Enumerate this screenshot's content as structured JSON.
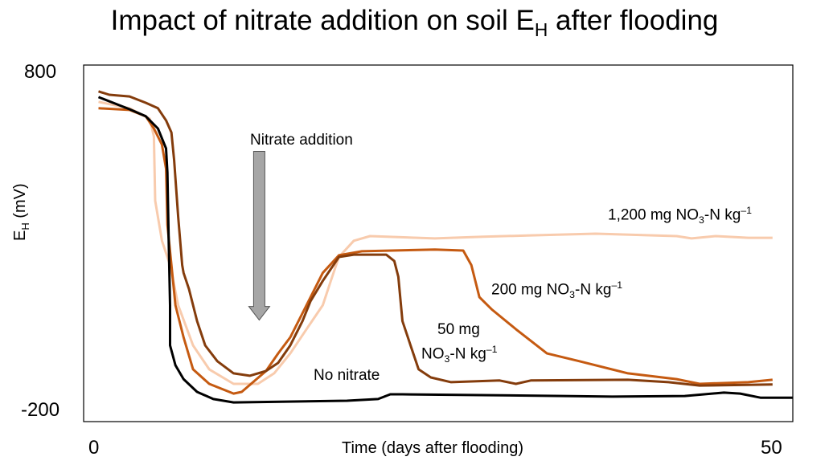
{
  "chart_data": {
    "type": "line",
    "title": {
      "pre": "Impact of nitrate addition on soil E",
      "sub": "H",
      "post": " after flooding"
    },
    "xlabel": "Time (days after flooding)",
    "ylabel": {
      "pre": "E",
      "sub": "H",
      "post": " (mV)"
    },
    "xlim": [
      -1,
      51.5
    ],
    "ylim": [
      -231,
      826
    ],
    "xticks": [
      {
        "value": 0,
        "label": "0"
      },
      {
        "value": 50,
        "label": "50"
      }
    ],
    "yticks": [
      {
        "value": 800,
        "label": "800"
      },
      {
        "value": -200,
        "label": "-200"
      }
    ],
    "grid": false,
    "series": [
      {
        "name": "No nitrate",
        "color": "#000000",
        "x": [
          0.1,
          2.4,
          3.6,
          4.5,
          5.1,
          5.2,
          5.3,
          5.4,
          5.4,
          5.4,
          5.8,
          6.4,
          7.4,
          8.6,
          10.1,
          18.5,
          20.8,
          21.7,
          22.6,
          34.5,
          38.1,
          43.5,
          46.4,
          47.6,
          49.1,
          51.5
        ],
        "y": [
          731,
          695,
          674,
          638,
          579,
          507,
          305,
          114,
          67,
          -5,
          -64,
          -105,
          -143,
          -164,
          -174,
          -169,
          -164,
          -150,
          -150,
          -155,
          -157,
          -155,
          -145,
          -148,
          -160,
          -160
        ]
      },
      {
        "name": "50 mg NO3-N kg-1",
        "color": "#843c0c",
        "x": [
          0.1,
          0.9,
          2.4,
          3.6,
          4.5,
          5.1,
          5.5,
          5.7,
          6.0,
          6.3,
          6.4,
          6.8,
          7.4,
          8.0,
          8.9,
          10.1,
          11.3,
          12.5,
          13.4,
          14.3,
          15.2,
          15.8,
          16.7,
          17.9,
          19.0,
          21.4,
          22.0,
          22.3,
          22.6,
          23.2,
          23.8,
          24.7,
          26.2,
          29.8,
          31.0,
          32.1,
          39.3,
          42.3,
          44.6,
          50.0
        ],
        "y": [
          748,
          738,
          733,
          714,
          698,
          662,
          626,
          543,
          376,
          233,
          210,
          162,
          67,
          -5,
          -52,
          -88,
          -95,
          -81,
          -57,
          -5,
          67,
          126,
          186,
          257,
          264,
          264,
          245,
          198,
          67,
          -5,
          -76,
          -100,
          -114,
          -109,
          -119,
          -109,
          -107,
          -114,
          -124,
          -121
        ]
      },
      {
        "name": "200 mg NO3-N kg-1",
        "color": "#c55a11",
        "x": [
          0.1,
          2.4,
          3.6,
          4.2,
          4.8,
          5.1,
          5.2,
          5.5,
          5.8,
          6.4,
          7.1,
          8.3,
          10.1,
          10.7,
          11.6,
          12.5,
          13.4,
          14.3,
          15.5,
          16.7,
          17.9,
          19.6,
          25.0,
          27.1,
          27.7,
          28.3,
          29.2,
          31.0,
          33.3,
          35.7,
          39.3,
          42.9,
          44.6,
          48.2,
          50.0
        ],
        "y": [
          698,
          693,
          674,
          638,
          590,
          519,
          352,
          233,
          114,
          19,
          -76,
          -119,
          -148,
          -143,
          -112,
          -81,
          -29,
          19,
          114,
          210,
          262,
          274,
          279,
          276,
          233,
          138,
          102,
          43,
          -29,
          -52,
          -88,
          -105,
          -119,
          -114,
          -107
        ]
      },
      {
        "name": "1,200 mg NO3-N kg-1",
        "color": "#f8cbad",
        "x": [
          0.1,
          2.4,
          3.9,
          4.2,
          4.3,
          4.8,
          5.4,
          6.0,
          7.1,
          8.3,
          10.1,
          11.9,
          13.1,
          14.3,
          15.5,
          16.7,
          17.3,
          17.9,
          19.0,
          20.2,
          25.0,
          28.6,
          32.1,
          36.9,
          42.9,
          44.0,
          45.8,
          48.2,
          50.0
        ],
        "y": [
          717,
          698,
          667,
          614,
          424,
          305,
          233,
          114,
          -5,
          -76,
          -119,
          -119,
          -88,
          -29,
          43,
          114,
          186,
          257,
          305,
          319,
          312,
          317,
          321,
          326,
          319,
          312,
          319,
          314,
          314
        ]
      }
    ],
    "annotations": {
      "nitrate_addition": {
        "text": "Nitrate addition",
        "day": 12.0,
        "arrow_from_mV": 570,
        "arrow_to_mV": 70,
        "color": "#a6a6a6"
      },
      "no_nitrate": "No nitrate",
      "label_50": {
        "line1": "50 mg",
        "pre": "NO",
        "sub": "3",
        "mid": "-N kg",
        "sup": "–1"
      },
      "label_200": {
        "pre": "200 mg NO",
        "sub": "3",
        "mid": "-N kg",
        "sup": "–1"
      },
      "label_1200": {
        "pre": "1,200 mg NO",
        "sub": "3",
        "mid": "-N kg",
        "sup": "–1"
      }
    }
  }
}
